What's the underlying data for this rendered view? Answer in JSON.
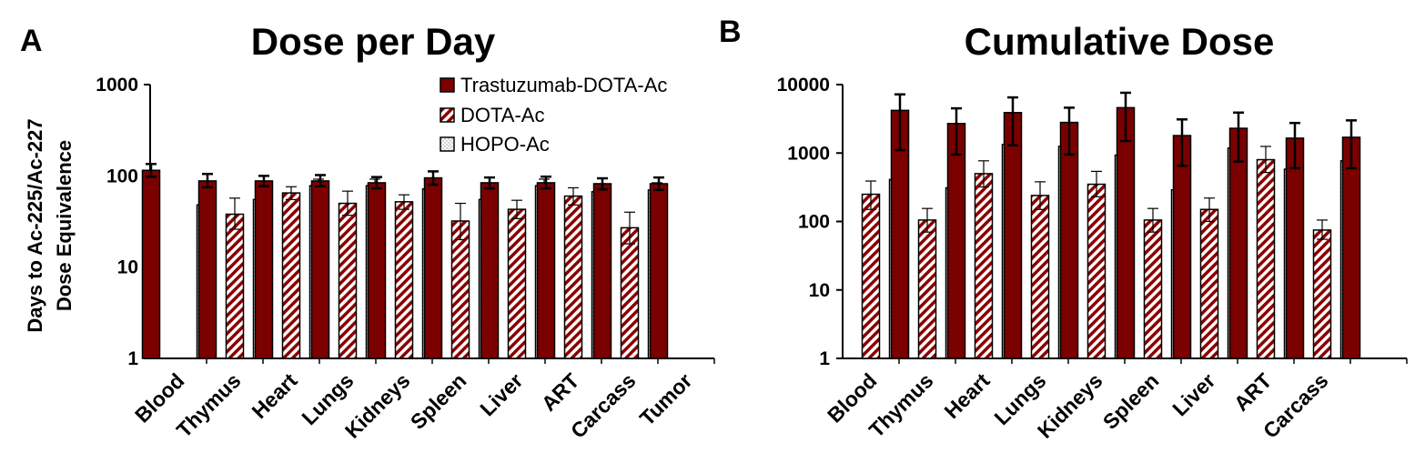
{
  "colors": {
    "trastuzumab": "#7b0000",
    "dota_hatch": "#8b0000",
    "hopo_fill": "#ffffff",
    "axis": "#000000"
  },
  "legend": {
    "items": [
      "Trastuzumab-DOTA-Ac",
      "DOTA-Ac",
      "HOPO-Ac"
    ],
    "placement": "top-right of panel A"
  },
  "chart_data": [
    {
      "panel": "A",
      "type": "bar",
      "title": "Dose per Day",
      "ylabel_line1": "Days to Ac-225/Ac-227",
      "ylabel_line2": "Dose Equivalence",
      "yscale": "log",
      "ylim": [
        1,
        1000
      ],
      "yticks": [
        "1",
        "10",
        "100",
        "1000"
      ],
      "categories": [
        "Blood",
        "Thymus",
        "Heart",
        "Lungs",
        "Kidneys",
        "Spleen",
        "Liver",
        "ART",
        "Carcass",
        "Tumor"
      ],
      "series": [
        {
          "name": "Trastuzumab-DOTA-Ac",
          "values": [
            115,
            88,
            88,
            88,
            84,
            95,
            84,
            84,
            82,
            82
          ],
          "err_low": [
            98,
            75,
            77,
            77,
            73,
            80,
            73,
            73,
            71,
            70
          ],
          "err_high": [
            135,
            105,
            100,
            102,
            97,
            112,
            96,
            98,
            94,
            96
          ]
        },
        {
          "name": "DOTA-Ac",
          "values": [
            null,
            38,
            65,
            50,
            52,
            32,
            43,
            60,
            27,
            null
          ],
          "err_low": [
            null,
            26,
            55,
            37,
            43,
            20,
            34,
            48,
            18,
            null
          ],
          "err_high": [
            null,
            57,
            76,
            68,
            62,
            50,
            54,
            74,
            40,
            null
          ]
        },
        {
          "name": "HOPO-Ac",
          "values": [
            48,
            55,
            78,
            78,
            72,
            55,
            78,
            67,
            70,
            null
          ],
          "err_low": [
            30,
            42,
            66,
            66,
            60,
            42,
            64,
            56,
            58,
            null
          ],
          "err_high": [
            72,
            70,
            92,
            92,
            87,
            70,
            92,
            82,
            84,
            null
          ]
        }
      ]
    },
    {
      "panel": "B",
      "type": "bar",
      "title": "Cumulative Dose",
      "yscale": "log",
      "ylim": [
        1,
        10000
      ],
      "yticks": [
        "1",
        "10",
        "100",
        "1000",
        "10000"
      ],
      "categories": [
        "Blood",
        "Thymus",
        "Heart",
        "Lungs",
        "Kidneys",
        "Spleen",
        "Liver",
        "ART",
        "Carcass",
        ""
      ],
      "series": [
        {
          "name": "Trastuzumab-DOTA-Ac",
          "values": [
            null,
            4200,
            2700,
            3900,
            2800,
            4600,
            1800,
            2300,
            1650,
            1700
          ],
          "err_low": [
            null,
            1100,
            950,
            1300,
            950,
            1500,
            650,
            750,
            600,
            600
          ],
          "err_high": [
            null,
            7200,
            4500,
            6500,
            4600,
            7600,
            3100,
            3900,
            2750,
            3000
          ]
        },
        {
          "name": "DOTA-Ac",
          "values": [
            250,
            105,
            500,
            240,
            350,
            105,
            150,
            800,
            75,
            null
          ],
          "err_low": [
            150,
            70,
            320,
            150,
            230,
            70,
            100,
            520,
            55,
            null
          ],
          "err_high": [
            390,
            155,
            770,
            380,
            540,
            155,
            220,
            1250,
            105,
            null
          ]
        },
        {
          "name": "HOPO-Ac",
          "values": [
            410,
            310,
            1330,
            1250,
            930,
            290,
            1180,
            580,
            770,
            null
          ],
          "err_low": [
            140,
            140,
            850,
            750,
            600,
            140,
            720,
            360,
            500,
            null
          ],
          "err_high": [
            720,
            480,
            2100,
            2000,
            1450,
            450,
            1900,
            920,
            1200,
            null
          ]
        }
      ]
    }
  ]
}
